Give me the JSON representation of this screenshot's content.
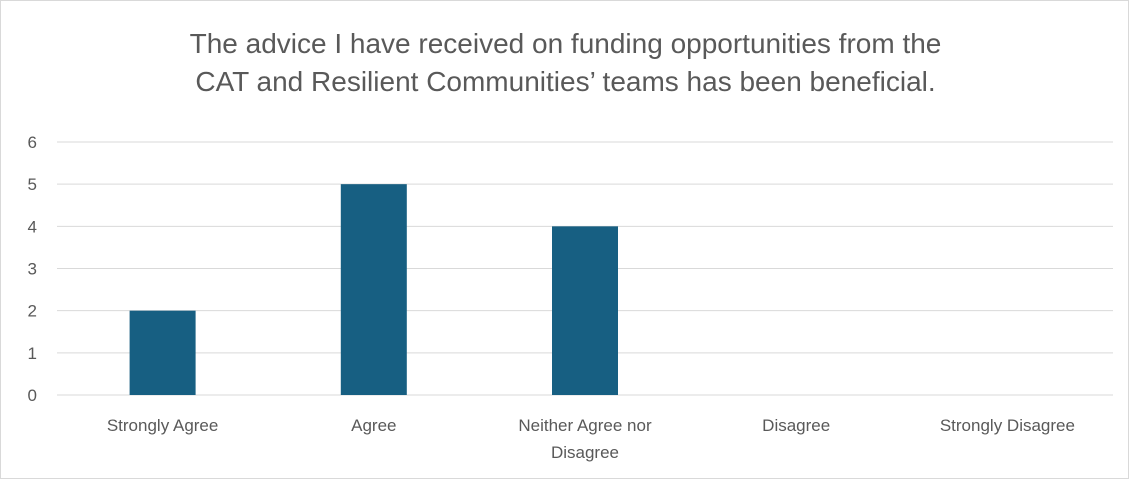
{
  "chart_data": {
    "type": "bar",
    "title_lines": [
      "The advice I have received on funding opportunities from the",
      "CAT and Resilient Communities’ teams has been beneficial."
    ],
    "categories": [
      [
        "Strongly Agree"
      ],
      [
        "Agree"
      ],
      [
        "Neither Agree nor",
        "Disagree"
      ],
      [
        "Disagree"
      ],
      [
        "Strongly Disagree"
      ]
    ],
    "values": [
      2,
      5,
      4,
      0,
      0
    ],
    "ylim": [
      0,
      6
    ],
    "yticks": [
      0,
      1,
      2,
      3,
      4,
      5,
      6
    ],
    "grid": true,
    "legend": "none",
    "colors": {
      "bar": "#175f82",
      "grid": "#d9d9d9",
      "text": "#595959"
    }
  }
}
